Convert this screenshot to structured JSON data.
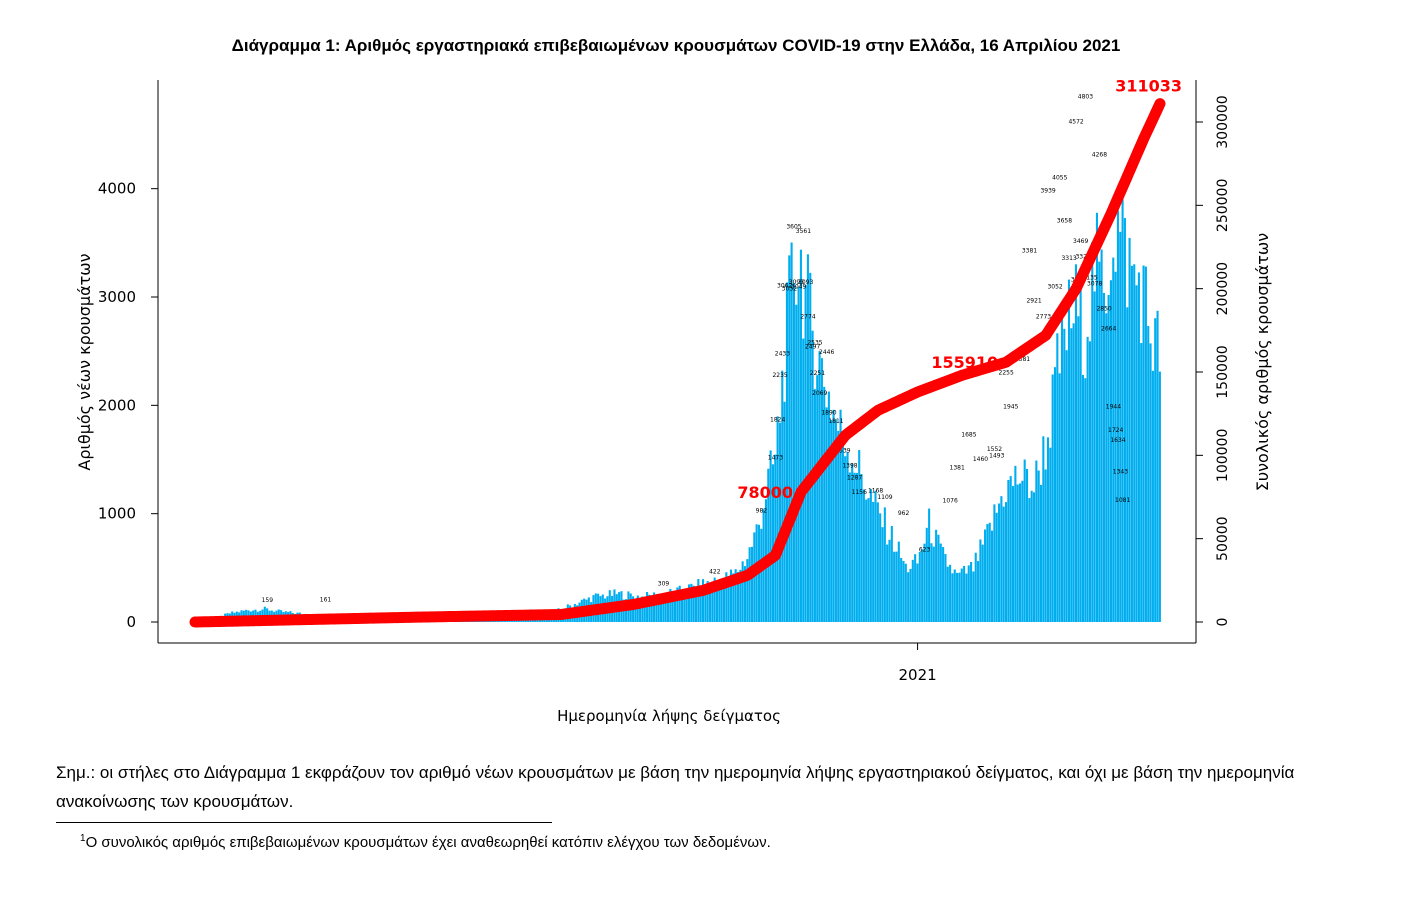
{
  "title": "Διάγραμμα 1: Αριθμός εργαστηριακά επιβεβαιωμένων κρουσμάτων COVID-19 στην Ελλάδα, 16 Απριλίου 2021",
  "note": "Σημ.: οι στήλες στο Διάγραμμα 1 εκφράζουν τον αριθμό νέων κρουσμάτων με βάση την ημερομηνία λήψης εργαστηριακού δείγματος, και όχι με βάση την ημερομηνία ανακοίνωσης των κρουσμάτων.",
  "footnote": {
    "marker": "1",
    "text": "Ο συνολικός αριθμός επιβεβαιωμένων κρουσμάτων έχει αναθεωρηθεί κατόπιν ελέγχου των δεδομένων."
  },
  "colors": {
    "bars": "#00AEEF",
    "cumulative_line": "#FF0000",
    "label_text": "#FF0000"
  },
  "chart_data": {
    "type": "bar+line",
    "title": "Διάγραμμα 1: Αριθμός εργαστηριακά επιβεβαιωμένων κρουσμάτων COVID-19 στην Ελλάδα, 16 Απριλίου 2021",
    "xlabel": "Ημερομηνία λήψης δείγματος",
    "ylabel_left": "Αριθμός νέων κρουσμάτων",
    "ylabel_right": "Συνολικός αριθμός κρουσμάτων",
    "x_start": "2020-02-26",
    "x_end": "2021-04-15",
    "x_ticks": [
      {
        "date": "2021-01-01",
        "label": "2021"
      }
    ],
    "y_left_range": [
      0,
      4800
    ],
    "y_left_ticks": [
      0,
      1000,
      2000,
      3000,
      4000
    ],
    "y_right_range": [
      0,
      312000
    ],
    "y_right_ticks": [
      0,
      50000,
      100000,
      150000,
      200000,
      250000,
      300000
    ],
    "daily_anchors": [
      [
        "2020-02-26",
        0
      ],
      [
        "2020-03-05",
        30
      ],
      [
        "2020-03-12",
        80
      ],
      [
        "2020-03-20",
        110
      ],
      [
        "2020-03-27",
        120
      ],
      [
        "2020-04-03",
        95
      ],
      [
        "2020-04-20",
        60
      ],
      [
        "2020-05-10",
        15
      ],
      [
        "2020-06-01",
        12
      ],
      [
        "2020-06-20",
        20
      ],
      [
        "2020-07-10",
        30
      ],
      [
        "2020-07-25",
        60
      ],
      [
        "2020-08-05",
        150
      ],
      [
        "2020-08-15",
        230
      ],
      [
        "2020-08-25",
        260
      ],
      [
        "2020-09-05",
        230
      ],
      [
        "2020-09-20",
        280
      ],
      [
        "2020-10-01",
        350
      ],
      [
        "2020-10-10",
        400
      ],
      [
        "2020-10-15",
        450
      ],
      [
        "2020-10-20",
        600
      ],
      [
        "2020-10-25",
        900
      ],
      [
        "2020-10-29",
        1300
      ],
      [
        "2020-11-01",
        1500
      ],
      [
        "2020-11-04",
        2200
      ],
      [
        "2020-11-07",
        2900
      ],
      [
        "2020-11-09",
        3300
      ],
      [
        "2020-11-12",
        3300
      ],
      [
        "2020-11-14",
        3000
      ],
      [
        "2020-11-17",
        2700
      ],
      [
        "2020-11-20",
        2400
      ],
      [
        "2020-11-24",
        2100
      ],
      [
        "2020-11-28",
        1800
      ],
      [
        "2020-12-03",
        1600
      ],
      [
        "2020-12-08",
        1350
      ],
      [
        "2020-12-13",
        1100
      ],
      [
        "2020-12-18",
        900
      ],
      [
        "2020-12-23",
        700
      ],
      [
        "2020-12-27",
        500
      ],
      [
        "2021-01-01",
        550
      ],
      [
        "2021-01-06",
        900
      ],
      [
        "2021-01-12",
        600
      ],
      [
        "2021-01-18",
        420
      ],
      [
        "2021-01-25",
        500
      ],
      [
        "2021-02-01",
        850
      ],
      [
        "2021-02-07",
        1200
      ],
      [
        "2021-02-14",
        1350
      ],
      [
        "2021-02-20",
        1250
      ],
      [
        "2021-02-26",
        1700
      ],
      [
        "2021-03-02",
        2300
      ],
      [
        "2021-03-06",
        2700
      ],
      [
        "2021-03-10",
        2900
      ],
      [
        "2021-03-14",
        2700
      ],
      [
        "2021-03-18",
        3300
      ],
      [
        "2021-03-22",
        3000
      ],
      [
        "2021-03-26",
        3700
      ],
      [
        "2021-03-30",
        3500
      ],
      [
        "2021-04-03",
        3200
      ],
      [
        "2021-04-07",
        3100
      ],
      [
        "2021-04-12",
        2600
      ],
      [
        "2021-04-15",
        2500
      ]
    ],
    "cumulative_anchors": [
      [
        "2020-02-26",
        0
      ],
      [
        "2020-05-31",
        2900
      ],
      [
        "2020-08-01",
        4500
      ],
      [
        "2020-09-01",
        10500
      ],
      [
        "2020-10-01",
        19000
      ],
      [
        "2020-10-20",
        28000
      ],
      [
        "2020-11-01",
        40000
      ],
      [
        "2020-11-12",
        78000
      ],
      [
        "2020-12-01",
        112000
      ],
      [
        "2020-12-15",
        127000
      ],
      [
        "2021-01-01",
        138000
      ],
      [
        "2021-01-20",
        148000
      ],
      [
        "2021-02-08",
        155910
      ],
      [
        "2021-02-25",
        172000
      ],
      [
        "2021-03-10",
        200000
      ],
      [
        "2021-03-25",
        245000
      ],
      [
        "2021-04-08",
        290000
      ],
      [
        "2021-04-15",
        311033
      ]
    ],
    "bar_labels": [
      [
        "2020-03-28",
        159
      ],
      [
        "2020-04-22",
        161
      ],
      [
        "2020-09-14",
        309
      ],
      [
        "2020-10-06",
        422
      ],
      [
        "2020-10-26",
        982
      ],
      [
        "2020-11-01",
        1473
      ],
      [
        "2020-11-02",
        1824
      ],
      [
        "2020-11-03",
        2235
      ],
      [
        "2020-11-04",
        2433
      ],
      [
        "2020-11-05",
        3062
      ],
      [
        "2020-11-07",
        3032
      ],
      [
        "2020-11-09",
        3605
      ],
      [
        "2020-11-10",
        3093
      ],
      [
        "2020-11-11",
        3049
      ],
      [
        "2020-11-13",
        3561
      ],
      [
        "2020-11-14",
        3093
      ],
      [
        "2020-11-15",
        2774
      ],
      [
        "2020-11-17",
        2497
      ],
      [
        "2020-11-18",
        2535
      ],
      [
        "2020-11-19",
        2251
      ],
      [
        "2020-11-20",
        2069
      ],
      [
        "2020-11-23",
        2446
      ],
      [
        "2020-11-24",
        1890
      ],
      [
        "2020-11-27",
        1811
      ],
      [
        "2020-11-30",
        1539
      ],
      [
        "2020-12-03",
        1398
      ],
      [
        "2020-12-05",
        1287
      ],
      [
        "2020-12-07",
        1156
      ],
      [
        "2020-12-14",
        1168
      ],
      [
        "2020-12-18",
        1109
      ],
      [
        "2020-12-26",
        962
      ],
      [
        "2021-01-04",
        623
      ],
      [
        "2021-01-15",
        1076
      ],
      [
        "2021-01-18",
        1381
      ],
      [
        "2021-01-23",
        1685
      ],
      [
        "2021-01-28",
        1460
      ],
      [
        "2021-02-03",
        1552
      ],
      [
        "2021-02-04",
        1493
      ],
      [
        "2021-02-08",
        2255
      ],
      [
        "2021-02-10",
        1945
      ],
      [
        "2021-02-15",
        2381
      ],
      [
        "2021-02-18",
        3381
      ],
      [
        "2021-02-20",
        2921
      ],
      [
        "2021-02-24",
        2773
      ],
      [
        "2021-02-26",
        3939
      ],
      [
        "2021-03-01",
        3052
      ],
      [
        "2021-03-03",
        4055
      ],
      [
        "2021-03-05",
        3658
      ],
      [
        "2021-03-07",
        3313
      ],
      [
        "2021-03-10",
        4572
      ],
      [
        "2021-03-11",
        3114
      ],
      [
        "2021-03-12",
        3469
      ],
      [
        "2021-03-13",
        3326
      ],
      [
        "2021-03-14",
        4803
      ],
      [
        "2021-03-16",
        3135
      ],
      [
        "2021-03-18",
        3078
      ],
      [
        "2021-03-20",
        4268
      ],
      [
        "2021-03-22",
        2850
      ],
      [
        "2021-03-24",
        2664
      ],
      [
        "2021-03-26",
        1944
      ],
      [
        "2021-03-27",
        1724
      ],
      [
        "2021-03-28",
        1634
      ],
      [
        "2021-03-29",
        1343
      ],
      [
        "2021-03-30",
        1081
      ]
    ],
    "line_labels": [
      {
        "value": "78000",
        "date": "2020-11-12"
      },
      {
        "value": "155910",
        "date": "2021-02-08"
      },
      {
        "value": "311033",
        "date": "2021-04-15"
      }
    ]
  }
}
